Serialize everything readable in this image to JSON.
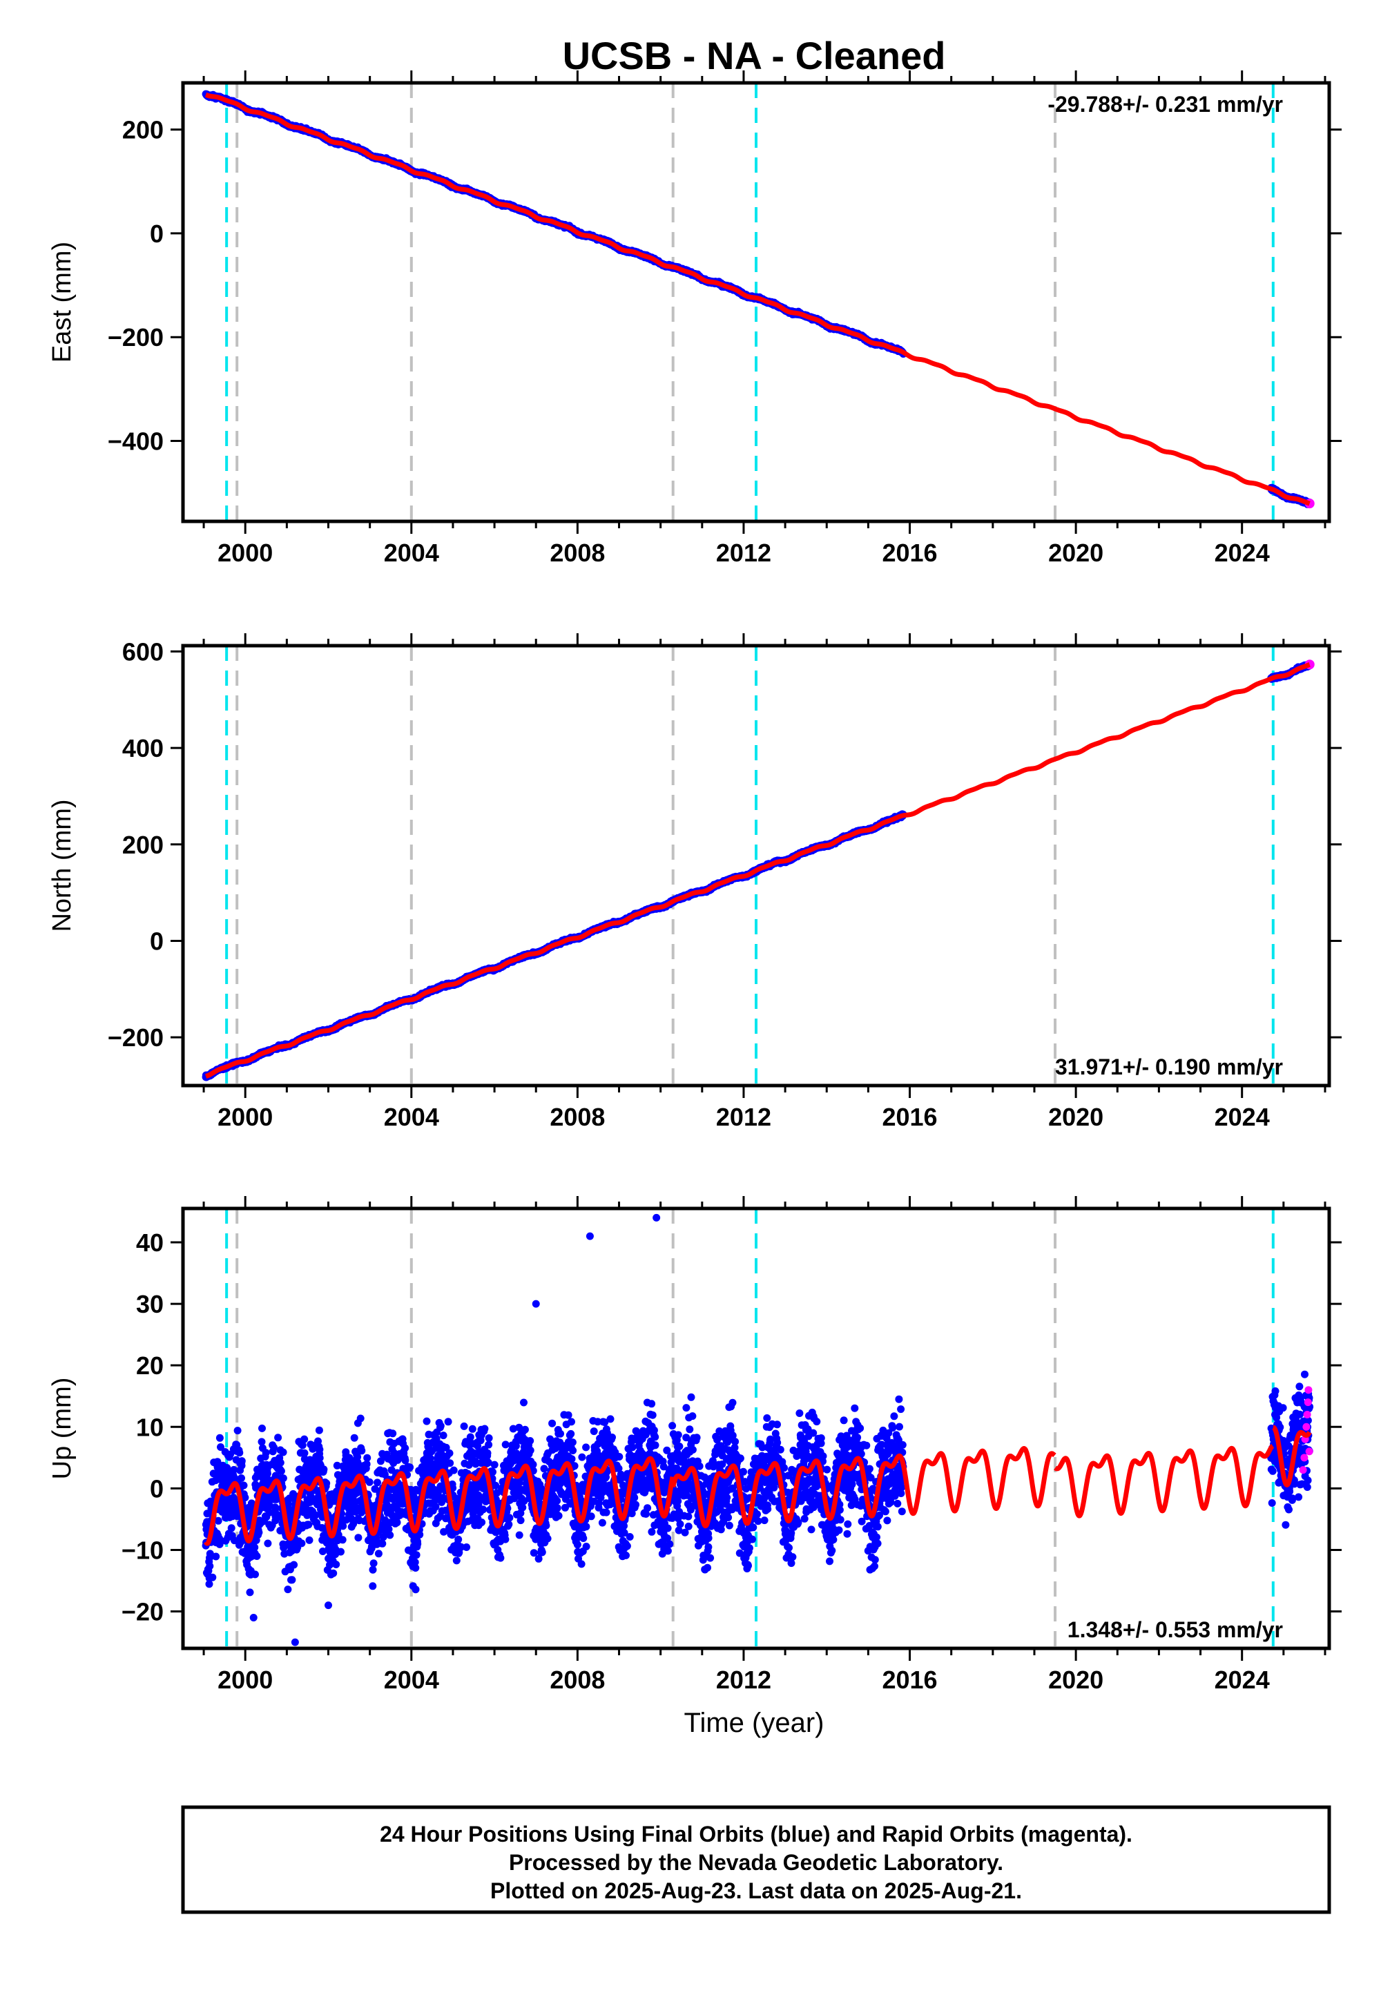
{
  "chart_data": {
    "type": "scatter",
    "title": "UCSB  - NA - Cleaned",
    "xlabel": "Time (year)",
    "xlim": [
      1998.5,
      2026.1
    ],
    "x_ticks": [
      2000,
      2004,
      2008,
      2012,
      2016,
      2020,
      2024
    ],
    "data_start": 1999.05,
    "final_end": 2015.85,
    "rapid_start": 2024.7,
    "data_end": 2025.63,
    "vlines": {
      "antenna_change": [
        1999.55,
        2012.3,
        2024.75
      ],
      "equipment_change": [
        1999.8,
        2004.0,
        2010.3,
        2019.5
      ]
    },
    "colors": {
      "final": "#0000ff",
      "rapid": "#ff00ff",
      "model": "#ff0000",
      "antenna_change": "#00e5ee",
      "equipment_change": "#c0c0c0"
    },
    "panels": [
      {
        "ylabel": "East (mm)",
        "ylim": [
          -555,
          290
        ],
        "y_ticks": [
          200,
          0,
          -200,
          -400
        ],
        "y_tick_labels": [
          "200",
          "0",
          "−200",
          "−400"
        ],
        "rate_text": "-29.788+/- 0.231 mm/yr",
        "rate_position": "top-right",
        "rate_mm_yr": -29.788,
        "value_at_start": 270,
        "seasonal_amp": 2.5,
        "scatter": 2
      },
      {
        "ylabel": "North (mm)",
        "ylim": [
          -300,
          612
        ],
        "y_ticks": [
          600,
          400,
          200,
          0,
          -200
        ],
        "y_tick_labels": [
          "600",
          "400",
          "200",
          "0",
          "−200"
        ],
        "rate_text": "31.971+/- 0.190 mm/yr",
        "rate_position": "bottom-right",
        "rate_mm_yr": 31.971,
        "value_at_start": -278,
        "seasonal_amp": 2.5,
        "scatter": 2
      },
      {
        "ylabel": "Up (mm)",
        "ylim": [
          -26,
          45.5
        ],
        "y_ticks": [
          40,
          30,
          20,
          10,
          0,
          -10,
          -20
        ],
        "y_tick_labels": [
          "40",
          "30",
          "20",
          "10",
          "0",
          "−10",
          "−20"
        ],
        "rate_text": "1.348+/- 0.553 mm/yr",
        "rate_position": "bottom-right",
        "rate_mm_yr": 1.348,
        "value_at_start": 0,
        "seasonal_amp": 5,
        "scatter": 5.5,
        "offsets": [
          {
            "x": 1999.05,
            "y": -3
          },
          {
            "x": 2010.3,
            "y": -5
          },
          {
            "x": 2019.5,
            "y": -7
          },
          {
            "x": 2024.75,
            "y": -4
          }
        ],
        "rapid_points": [
          [
            2025.47,
            3
          ],
          [
            2025.5,
            5
          ],
          [
            2025.52,
            8
          ],
          [
            2025.55,
            10
          ],
          [
            2025.57,
            12
          ],
          [
            2025.59,
            14
          ],
          [
            2025.6,
            16
          ],
          [
            2025.62,
            6
          ]
        ],
        "outliers": [
          [
            2008.3,
            41
          ],
          [
            2009.9,
            44
          ],
          [
            2007.0,
            30
          ],
          [
            2001.2,
            -25
          ],
          [
            2000.2,
            -21
          ],
          [
            2002.0,
            -19
          ]
        ]
      }
    ]
  },
  "footer": {
    "line1": "24 Hour Positions Using Final Orbits (blue) and Rapid Orbits (magenta).",
    "line2": "Processed by the Nevada Geodetic Laboratory.",
    "line3": "Plotted on 2025-Aug-23. Last data on 2025-Aug-21."
  }
}
